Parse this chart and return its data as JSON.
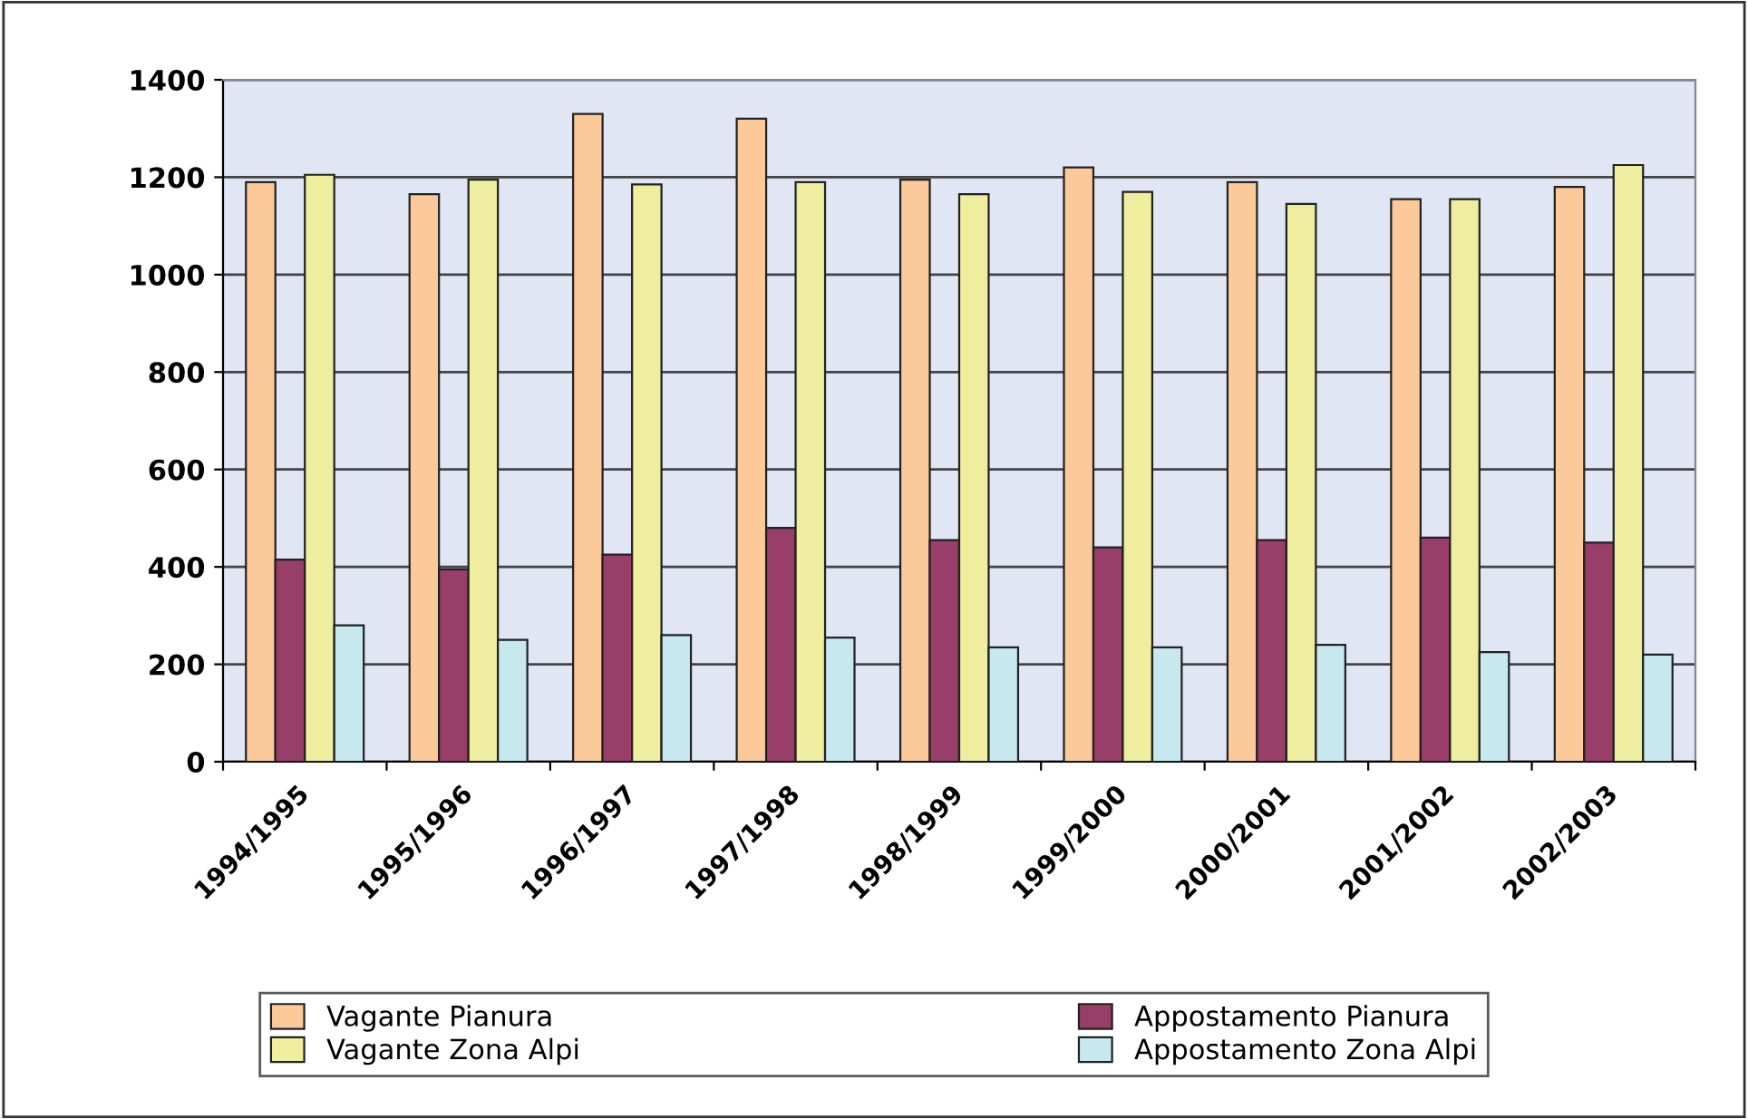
{
  "chart_data": {
    "type": "bar",
    "categories": [
      "1994/1995",
      "1995/1996",
      "1996/1997",
      "1997/1998",
      "1998/1999",
      "1999/2000",
      "2000/2001",
      "2001/2002",
      "2002/2003"
    ],
    "series": [
      {
        "name": "Vagante Pianura",
        "color": "#fbc99a",
        "values": [
          1190,
          1165,
          1330,
          1320,
          1195,
          1220,
          1190,
          1155,
          1180
        ]
      },
      {
        "name": "Appostamento Pianura",
        "color": "#993d69",
        "values": [
          415,
          395,
          425,
          480,
          455,
          440,
          455,
          460,
          450
        ]
      },
      {
        "name": "Vagante Zona Alpi",
        "color": "#eeee9e",
        "values": [
          1205,
          1195,
          1185,
          1190,
          1165,
          1170,
          1145,
          1155,
          1225
        ]
      },
      {
        "name": "Appostamento Zona Alpi",
        "color": "#c6e8ee",
        "values": [
          280,
          250,
          260,
          255,
          235,
          235,
          240,
          225,
          220
        ]
      }
    ],
    "ylim": [
      0,
      1400
    ],
    "yticks": [
      0,
      200,
      400,
      600,
      800,
      1000,
      1200,
      1400
    ],
    "grid": "y",
    "legend": "bottom"
  }
}
